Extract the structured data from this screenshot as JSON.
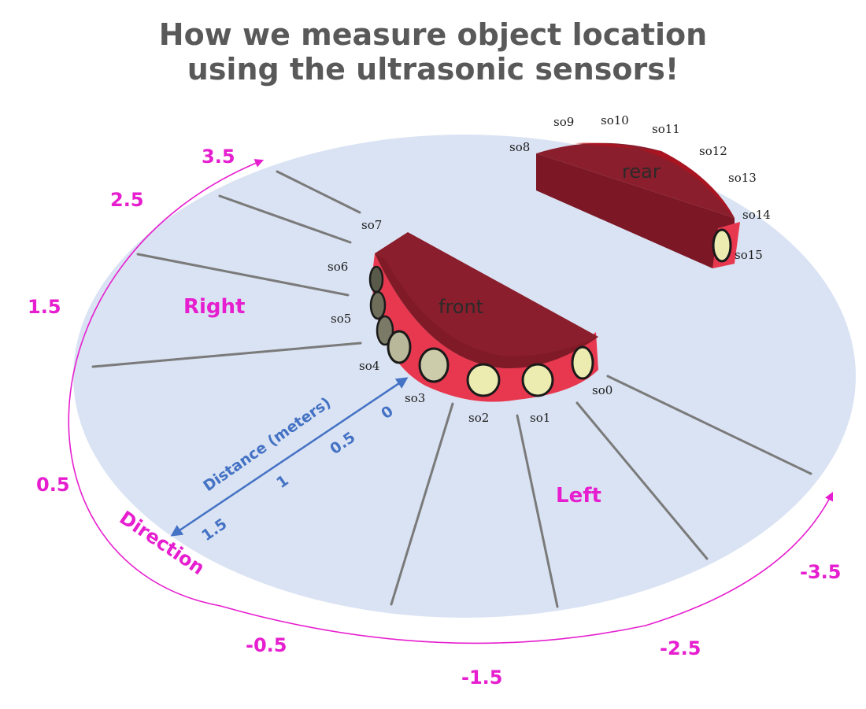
{
  "title": {
    "line1": "How we measure object location",
    "line2": "using the ultrasonic sensors!"
  },
  "colors": {
    "title": "#595959",
    "disk": "#dae3f3",
    "robot_body": "#8b1e2c",
    "robot_edge": "#e8384f",
    "sensor_face": "#ecebb0",
    "ray": "#7a7a7a",
    "direction": "#e61ecf",
    "distance": "#4472c4"
  },
  "robot": {
    "front_label": "front",
    "rear_label": "rear"
  },
  "sides": {
    "right": "Right",
    "left": "Left"
  },
  "sensors": [
    "so0",
    "so1",
    "so2",
    "so3",
    "so4",
    "so5",
    "so6",
    "so7",
    "so8",
    "so9",
    "so10",
    "so11",
    "so12",
    "so13",
    "so14",
    "so15"
  ],
  "direction_axis": {
    "title": "Direction",
    "ticks": [
      "3.5",
      "2.5",
      "1.5",
      "0.5",
      "-0.5",
      "-1.5",
      "-2.5",
      "-3.5"
    ]
  },
  "distance_axis": {
    "title": "Distance (meters)",
    "ticks": [
      "0",
      "0.5",
      "1",
      "1.5"
    ]
  }
}
